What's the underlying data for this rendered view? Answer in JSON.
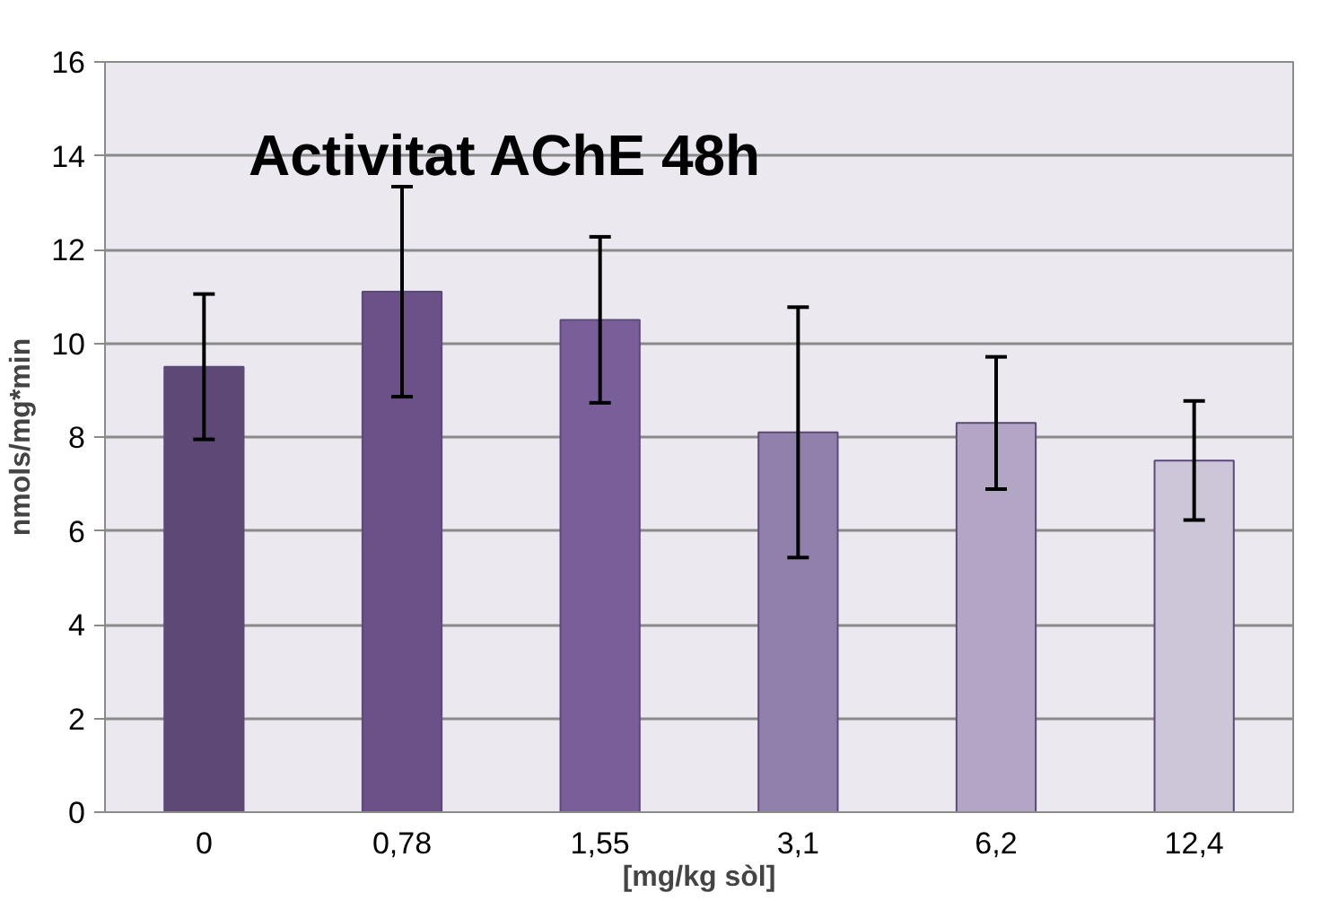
{
  "chart_data": {
    "type": "bar",
    "title": "Activitat AChE 48h",
    "xlabel": "[mg/kg sòl]",
    "ylabel": "nmols/mg*min",
    "categories": [
      "0",
      "0,78",
      "1,55",
      "3,1",
      "6,2",
      "12,4"
    ],
    "values": [
      9.5,
      11.1,
      10.5,
      8.1,
      8.3,
      7.5
    ],
    "errors": [
      1.55,
      2.24,
      1.77,
      2.67,
      1.41,
      1.27
    ],
    "colors": [
      "#5e4876",
      "#6c5088",
      "#7a5e9a",
      "#9180ab",
      "#b2a6c4",
      "#cdc5d8"
    ],
    "ylim": [
      0,
      16
    ],
    "yticks": [
      0,
      2,
      4,
      6,
      8,
      10,
      12,
      14,
      16
    ],
    "grid": "y"
  }
}
